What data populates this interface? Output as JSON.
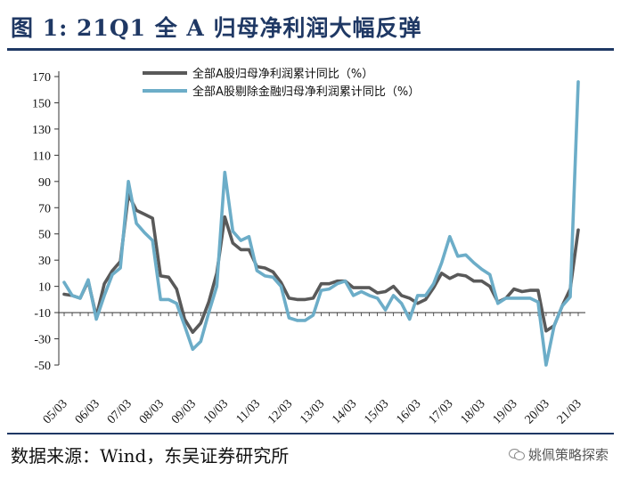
{
  "header": {
    "title": "图 1:  21Q1 全 A 归母净利润大幅反弹"
  },
  "footer": {
    "source": "数据来源：Wind，东吴证券研究所",
    "watermark": "姚佩策略探索",
    "watermark_icon": "wechat-icon"
  },
  "chart_data": {
    "type": "line",
    "x": [
      "05/03",
      "05/06",
      "05/09",
      "05/12",
      "06/03",
      "06/06",
      "06/09",
      "06/12",
      "07/03",
      "07/06",
      "07/09",
      "07/12",
      "08/03",
      "08/06",
      "08/09",
      "08/12",
      "09/03",
      "09/06",
      "09/09",
      "09/12",
      "10/03",
      "10/06",
      "10/09",
      "10/12",
      "11/03",
      "11/06",
      "11/09",
      "11/12",
      "12/03",
      "12/06",
      "12/09",
      "12/12",
      "13/03",
      "13/06",
      "13/09",
      "13/12",
      "14/03",
      "14/06",
      "14/09",
      "14/12",
      "15/03",
      "15/06",
      "15/09",
      "15/12",
      "16/03",
      "16/06",
      "16/09",
      "16/12",
      "17/03",
      "17/06",
      "17/09",
      "17/12",
      "18/03",
      "18/06",
      "18/09",
      "18/12",
      "19/03",
      "19/06",
      "19/09",
      "19/12",
      "20/03",
      "20/06",
      "20/09",
      "20/12",
      "21/03"
    ],
    "x_tick_labels": [
      "05/03",
      "06/03",
      "07/03",
      "08/03",
      "09/03",
      "10/03",
      "11/03",
      "12/03",
      "13/03",
      "14/03",
      "15/03",
      "16/03",
      "17/03",
      "18/03",
      "19/03",
      "20/03",
      "21/03"
    ],
    "ylim": [
      -50,
      170
    ],
    "yticks": [
      -50,
      -30,
      -10,
      10,
      30,
      50,
      70,
      90,
      110,
      130,
      150,
      170
    ],
    "legend_position": "top-center",
    "series": [
      {
        "name": "全部A股归母净利润累计同比（%）",
        "color": "#595959",
        "values": [
          4,
          3,
          1,
          14,
          -13,
          12,
          22,
          29,
          80,
          68,
          65,
          62,
          18,
          17,
          8,
          -15,
          -25,
          -18,
          -2,
          20,
          63,
          43,
          38,
          38,
          25,
          24,
          21,
          13,
          1,
          0,
          0,
          1,
          12,
          12,
          14,
          14,
          9,
          9,
          9,
          5,
          6,
          10,
          3,
          1,
          -3,
          0,
          9,
          20,
          16,
          19,
          18,
          14,
          14,
          10,
          -2,
          1,
          8,
          6,
          7,
          7,
          -24,
          -20,
          -5,
          8,
          53
        ]
      },
      {
        "name": "全部A股剔除金融归母净利润累计同比（%）",
        "color": "#6cadc8",
        "values": [
          13,
          3,
          1,
          15,
          -15,
          3,
          19,
          24,
          90,
          58,
          51,
          45,
          0,
          0,
          -3,
          -20,
          -38,
          -32,
          -10,
          10,
          97,
          52,
          45,
          48,
          22,
          18,
          17,
          10,
          -14,
          -16,
          -16,
          -12,
          7,
          8,
          12,
          14,
          3,
          6,
          3,
          1,
          -8,
          3,
          -3,
          -15,
          3,
          3,
          12,
          28,
          48,
          33,
          34,
          28,
          23,
          19,
          -3,
          1,
          1,
          1,
          1,
          -2,
          -50,
          -20,
          -5,
          2,
          166
        ]
      }
    ]
  }
}
